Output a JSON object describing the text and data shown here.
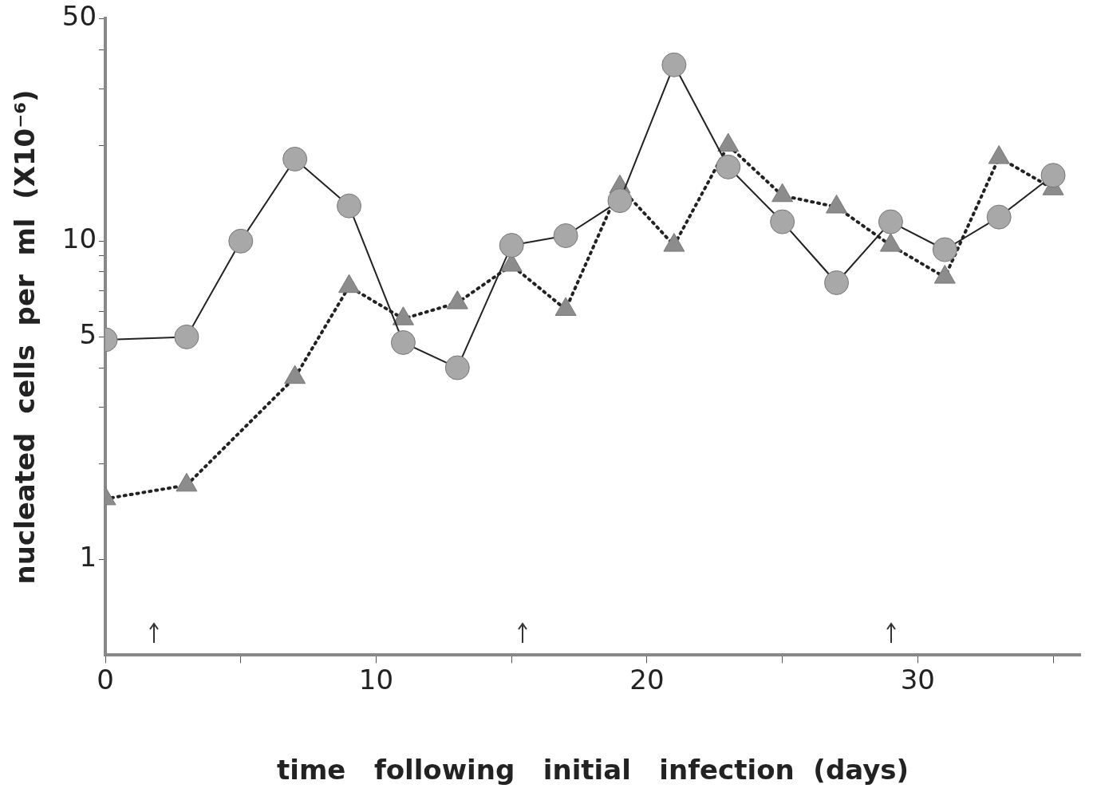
{
  "chart_data": {
    "type": "line",
    "xlabel": "time   following   initial   infection  (days)",
    "ylabel": "nucleated  cells  per  ml  (X10⁻⁶)",
    "log": "y",
    "grid": false,
    "legend": false,
    "xlim": [
      0,
      36
    ],
    "xticks": [
      0,
      {
        "value": 5,
        "label": null
      },
      10,
      {
        "value": 15,
        "label": null
      },
      20,
      {
        "value": 25,
        "label": null
      },
      30,
      {
        "value": 35,
        "label": null
      }
    ],
    "ylim": [
      0.5,
      50
    ],
    "yticks": [
      1,
      {
        "value": 2,
        "label": null
      },
      {
        "value": 3,
        "label": null
      },
      {
        "value": 4,
        "label": null
      },
      5,
      {
        "value": 6,
        "label": null
      },
      {
        "value": 7,
        "label": null
      },
      {
        "value": 8,
        "label": null
      },
      {
        "value": 9,
        "label": null
      },
      10,
      {
        "value": 20,
        "label": null
      },
      {
        "value": 30,
        "label": null
      },
      {
        "value": 40,
        "label": null
      },
      50
    ],
    "series": [
      {
        "color": "#a8a8a8",
        "marker": "circle",
        "line_style": "solid",
        "x": [
          0,
          3,
          5,
          7,
          9,
          11,
          13,
          15,
          17,
          19,
          21,
          23,
          25,
          27,
          29,
          31,
          33,
          35
        ],
        "values": [
          4.9,
          5.0,
          10,
          18.1,
          12.9,
          4.8,
          4.0,
          9.7,
          10.4,
          13.4,
          35.8,
          17.1,
          11.5,
          7.4,
          11.5,
          9.4,
          11.9,
          16.1
        ]
      },
      {
        "color": "#8c8c8c",
        "marker": "triangle",
        "line_style": "dotted",
        "x": [
          0,
          3,
          7,
          9,
          11,
          13,
          15,
          17,
          19,
          21,
          23,
          25,
          27,
          29,
          31,
          33,
          35
        ],
        "values": [
          1.55,
          1.71,
          3.73,
          7.2,
          5.7,
          6.4,
          8.4,
          6.1,
          14.8,
          9.7,
          20.0,
          13.9,
          12.8,
          9.7,
          7.7,
          18.3,
          14.6
        ]
      }
    ]
  }
}
